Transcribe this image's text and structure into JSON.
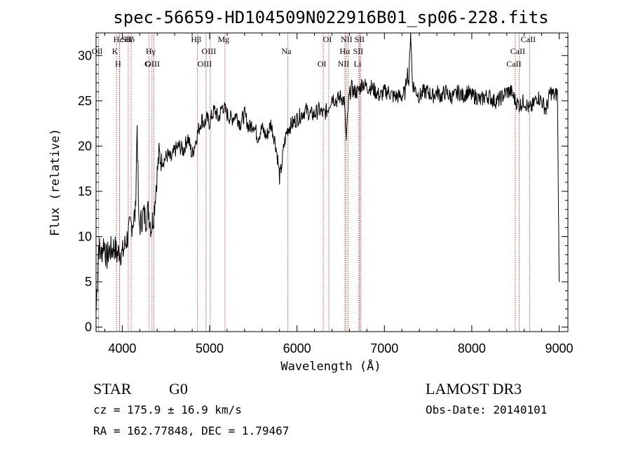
{
  "chart_data": {
    "type": "line",
    "title": "spec-56659-HD104509N022916B01_sp06-228.fits",
    "xlabel": "Wavelength (Å)",
    "ylabel": "Flux (relative)",
    "xlim": [
      3700,
      9100
    ],
    "ylim": [
      -0.5,
      32.5
    ],
    "xticks": [
      4000,
      5000,
      6000,
      7000,
      8000,
      9000
    ],
    "yticks": [
      0,
      5,
      10,
      15,
      20,
      25,
      30
    ],
    "grid": false,
    "series": [
      {
        "x": [
          3700,
          3730,
          3760,
          3790,
          3820,
          3850,
          3880,
          3910,
          3940,
          3970,
          4000,
          4030,
          4060,
          4090,
          4110,
          4130,
          4150,
          4170,
          4190,
          4210,
          4240,
          4270,
          4300,
          4330,
          4360,
          4390,
          4420,
          4450,
          4480,
          4520,
          4560,
          4600,
          4650,
          4700,
          4750,
          4800,
          4850,
          4880,
          4910,
          4940,
          4970,
          5000,
          5030,
          5060,
          5100,
          5150,
          5200,
          5250,
          5300,
          5350,
          5400,
          5450,
          5500,
          5550,
          5600,
          5650,
          5700,
          5750,
          5780,
          5800,
          5820,
          5850,
          5880,
          5900,
          5950,
          6000,
          6050,
          6100,
          6150,
          6200,
          6250,
          6300,
          6350,
          6400,
          6450,
          6500,
          6540,
          6563,
          6590,
          6620,
          6650,
          6700,
          6750,
          6800,
          6850,
          6900,
          6950,
          7000,
          7050,
          7100,
          7150,
          7200,
          7240,
          7260,
          7280,
          7300,
          7320,
          7340,
          7400,
          7450,
          7500,
          7550,
          7600,
          7650,
          7700,
          7750,
          7800,
          7850,
          7900,
          7950,
          8000,
          8050,
          8100,
          8150,
          8200,
          8250,
          8300,
          8350,
          8400,
          8450,
          8500,
          8542,
          8600,
          8662,
          8700,
          8750,
          8800,
          8850,
          8900,
          8950,
          8980,
          9000
        ],
        "y": [
          1.5,
          9.0,
          8.0,
          9.5,
          7.5,
          8.5,
          8.5,
          9.0,
          8.0,
          8.5,
          8.0,
          9.0,
          10.0,
          11.0,
          11.5,
          12.0,
          12.5,
          22.5,
          11.0,
          11.5,
          12.5,
          12.0,
          13.0,
          11.0,
          12.5,
          16.0,
          19.0,
          18.5,
          18.5,
          19.0,
          18.5,
          19.5,
          20.0,
          19.5,
          21.0,
          19.0,
          21.0,
          22.0,
          23.0,
          22.5,
          23.0,
          22.5,
          23.5,
          24.0,
          23.0,
          24.5,
          23.5,
          23.0,
          23.5,
          22.5,
          23.5,
          22.0,
          22.5,
          21.0,
          22.0,
          21.0,
          22.5,
          20.5,
          18.5,
          16.5,
          17.5,
          20.0,
          21.5,
          22.0,
          22.5,
          23.0,
          23.5,
          24.0,
          23.5,
          23.5,
          24.0,
          23.5,
          24.0,
          25.5,
          25.0,
          25.5,
          25.0,
          20.5,
          25.0,
          26.5,
          26.0,
          26.0,
          27.0,
          26.5,
          26.5,
          26.0,
          25.5,
          26.0,
          26.0,
          25.5,
          25.5,
          25.5,
          26.0,
          28.5,
          27.0,
          33.0,
          27.0,
          26.5,
          25.5,
          26.0,
          26.0,
          25.5,
          26.0,
          25.5,
          26.0,
          25.5,
          25.5,
          26.0,
          25.5,
          26.0,
          25.5,
          25.5,
          25.0,
          25.5,
          25.5,
          25.0,
          25.0,
          25.5,
          26.0,
          26.0,
          25.0,
          24.5,
          25.0,
          24.0,
          24.5,
          25.5,
          25.0,
          24.0,
          26.0,
          25.5,
          26.0,
          5.0
        ]
      }
    ],
    "spectral_lines": [
      {
        "label": "Hδ",
        "wl": 4101.7
      },
      {
        "label": "Oll",
        "wl": 3727.0
      },
      {
        "label": "OIII",
        "wl": 4363.0
      },
      {
        "label": "Hε",
        "wl": 3970.1
      },
      {
        "label": "K",
        "wl": 3933.7
      },
      {
        "label": "H",
        "wl": 3968.5
      },
      {
        "label": "SII",
        "wl": 4068.6
      },
      {
        "label": "Hγ",
        "wl": 4340.5
      },
      {
        "label": "G",
        "wl": 4304.4
      },
      {
        "label": "Hβ",
        "wl": 4861.3
      },
      {
        "label": "OIII",
        "wl": 5006.8
      },
      {
        "label": "OIII",
        "wl": 4958.9
      },
      {
        "label": "Mg",
        "wl": 5175.3
      },
      {
        "label": "Na",
        "wl": 5894.0
      },
      {
        "label": "OI",
        "wl": 6300.3
      },
      {
        "label": "OI",
        "wl": 6363.8
      },
      {
        "label": "Hα",
        "wl": 6562.8
      },
      {
        "label": "NII",
        "wl": 6548.0
      },
      {
        "label": "NII",
        "wl": 6583.4
      },
      {
        "label": "SII",
        "wl": 6716.4
      },
      {
        "label": "Li",
        "wl": 6707.8
      },
      {
        "label": "SII",
        "wl": 6730.8
      },
      {
        "label": "CaII",
        "wl": 8542.1
      },
      {
        "label": "CaII",
        "wl": 8498.0
      },
      {
        "label": "CaII",
        "wl": 8662.1
      }
    ]
  },
  "info": {
    "object_class": "STAR",
    "subclass": "G0",
    "survey": "LAMOST DR3",
    "redshift": "cz = 175.9 ± 16.9 km/s",
    "obs_date": "Obs-Date: 20140101",
    "coords": "RA = 162.77848, DEC =    1.79467"
  }
}
